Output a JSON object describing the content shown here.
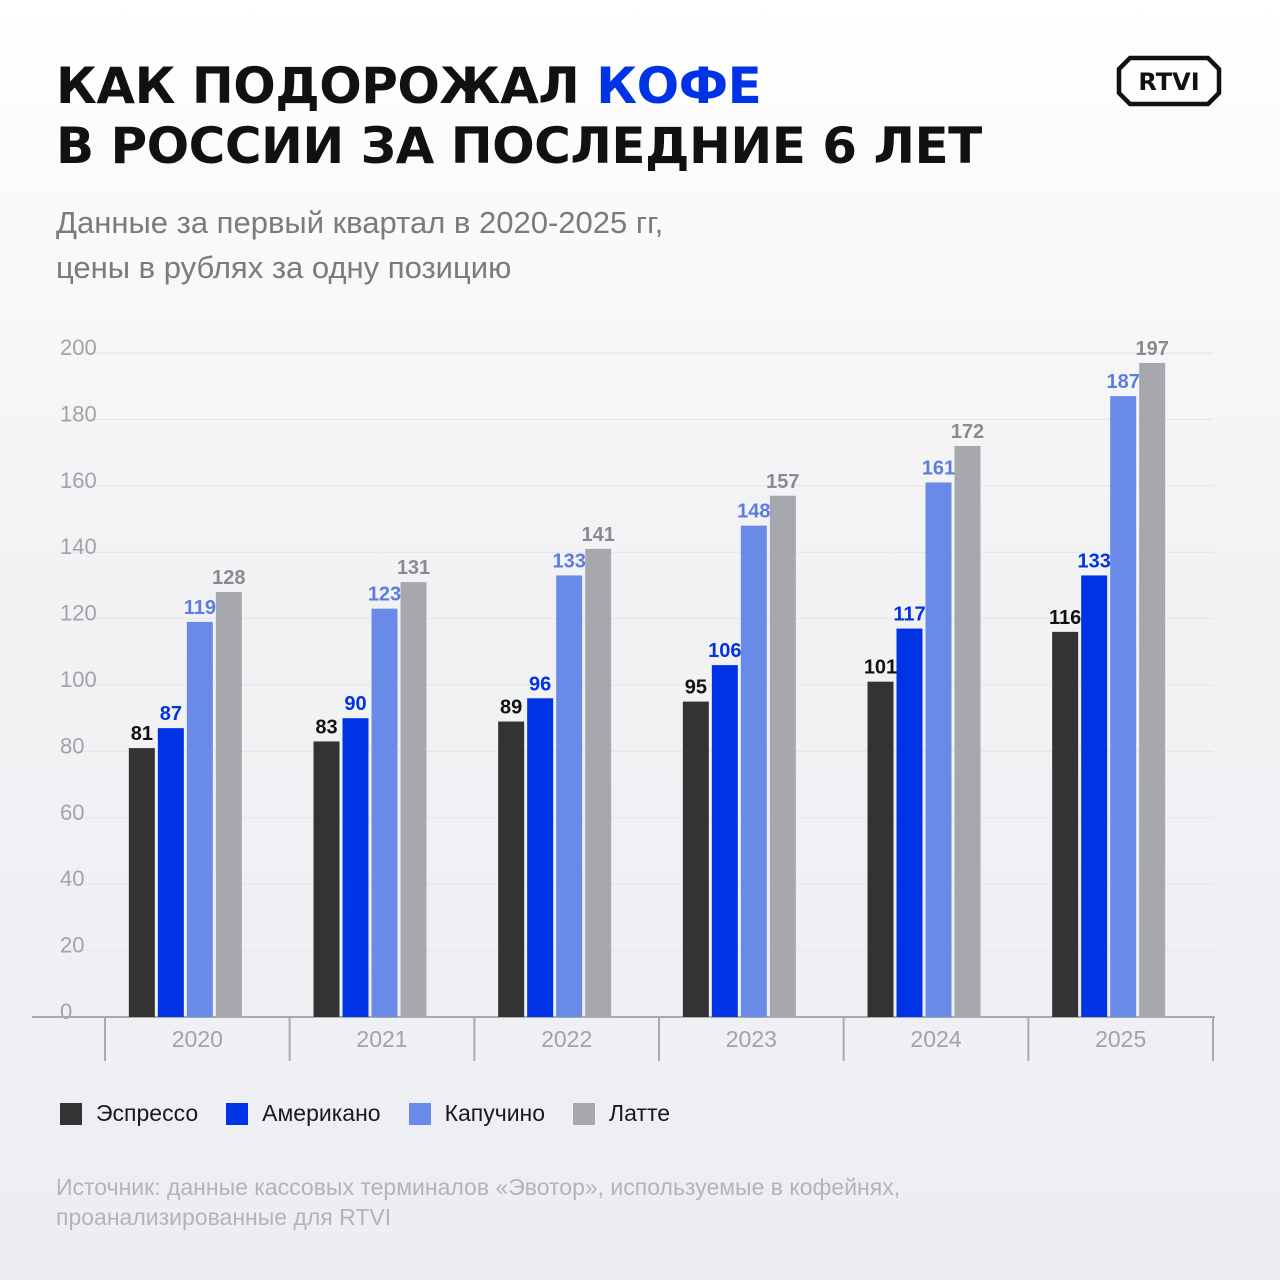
{
  "header": {
    "title_part1": "КАК ПОДОРОЖАЛ ",
    "title_accent": "КОФЕ",
    "title_line2": "В РОССИИ ЗА ПОСЛЕДНИЕ 6 ЛЕТ",
    "subtitle_line1": "Данные за первый квартал в 2020-2025 гг,",
    "subtitle_line2": "цены в рублях за одну позицию"
  },
  "logo": {
    "text": "RTVI",
    "icon": "rtvi-logo"
  },
  "colors": {
    "accent": "#0033e6",
    "espresso": "#333333",
    "americano": "#0033e6",
    "cappuccino": "#6a8ae8",
    "latte": "#a7a8ad"
  },
  "chart_data": {
    "type": "bar",
    "categories": [
      "2020",
      "2021",
      "2022",
      "2023",
      "2024",
      "2025"
    ],
    "series": [
      {
        "name": "Эспрессо",
        "values": [
          81,
          83,
          89,
          95,
          101,
          116
        ],
        "color": "#333333",
        "label_color": "#111111"
      },
      {
        "name": "Американо",
        "values": [
          87,
          90,
          96,
          106,
          117,
          133
        ],
        "color": "#0033e6",
        "label_color": "#0033e6"
      },
      {
        "name": "Капучино",
        "values": [
          119,
          123,
          133,
          148,
          161,
          187
        ],
        "color": "#6a8ae8",
        "label_color": "#5b7de0"
      },
      {
        "name": "Латте",
        "values": [
          128,
          131,
          141,
          157,
          172,
          197
        ],
        "color": "#a7a8ad",
        "label_color": "#8a8b90"
      }
    ],
    "ylim": [
      0,
      200
    ],
    "yticks": [
      0,
      20,
      40,
      60,
      80,
      100,
      120,
      140,
      160,
      180,
      200
    ],
    "grid": true,
    "legend_position": "bottom-left"
  },
  "source": {
    "line1": "Источник: данные кассовых терминалов «Эвотор», используемые в кофейнях,",
    "line2": "проанализированные для RTVI"
  }
}
